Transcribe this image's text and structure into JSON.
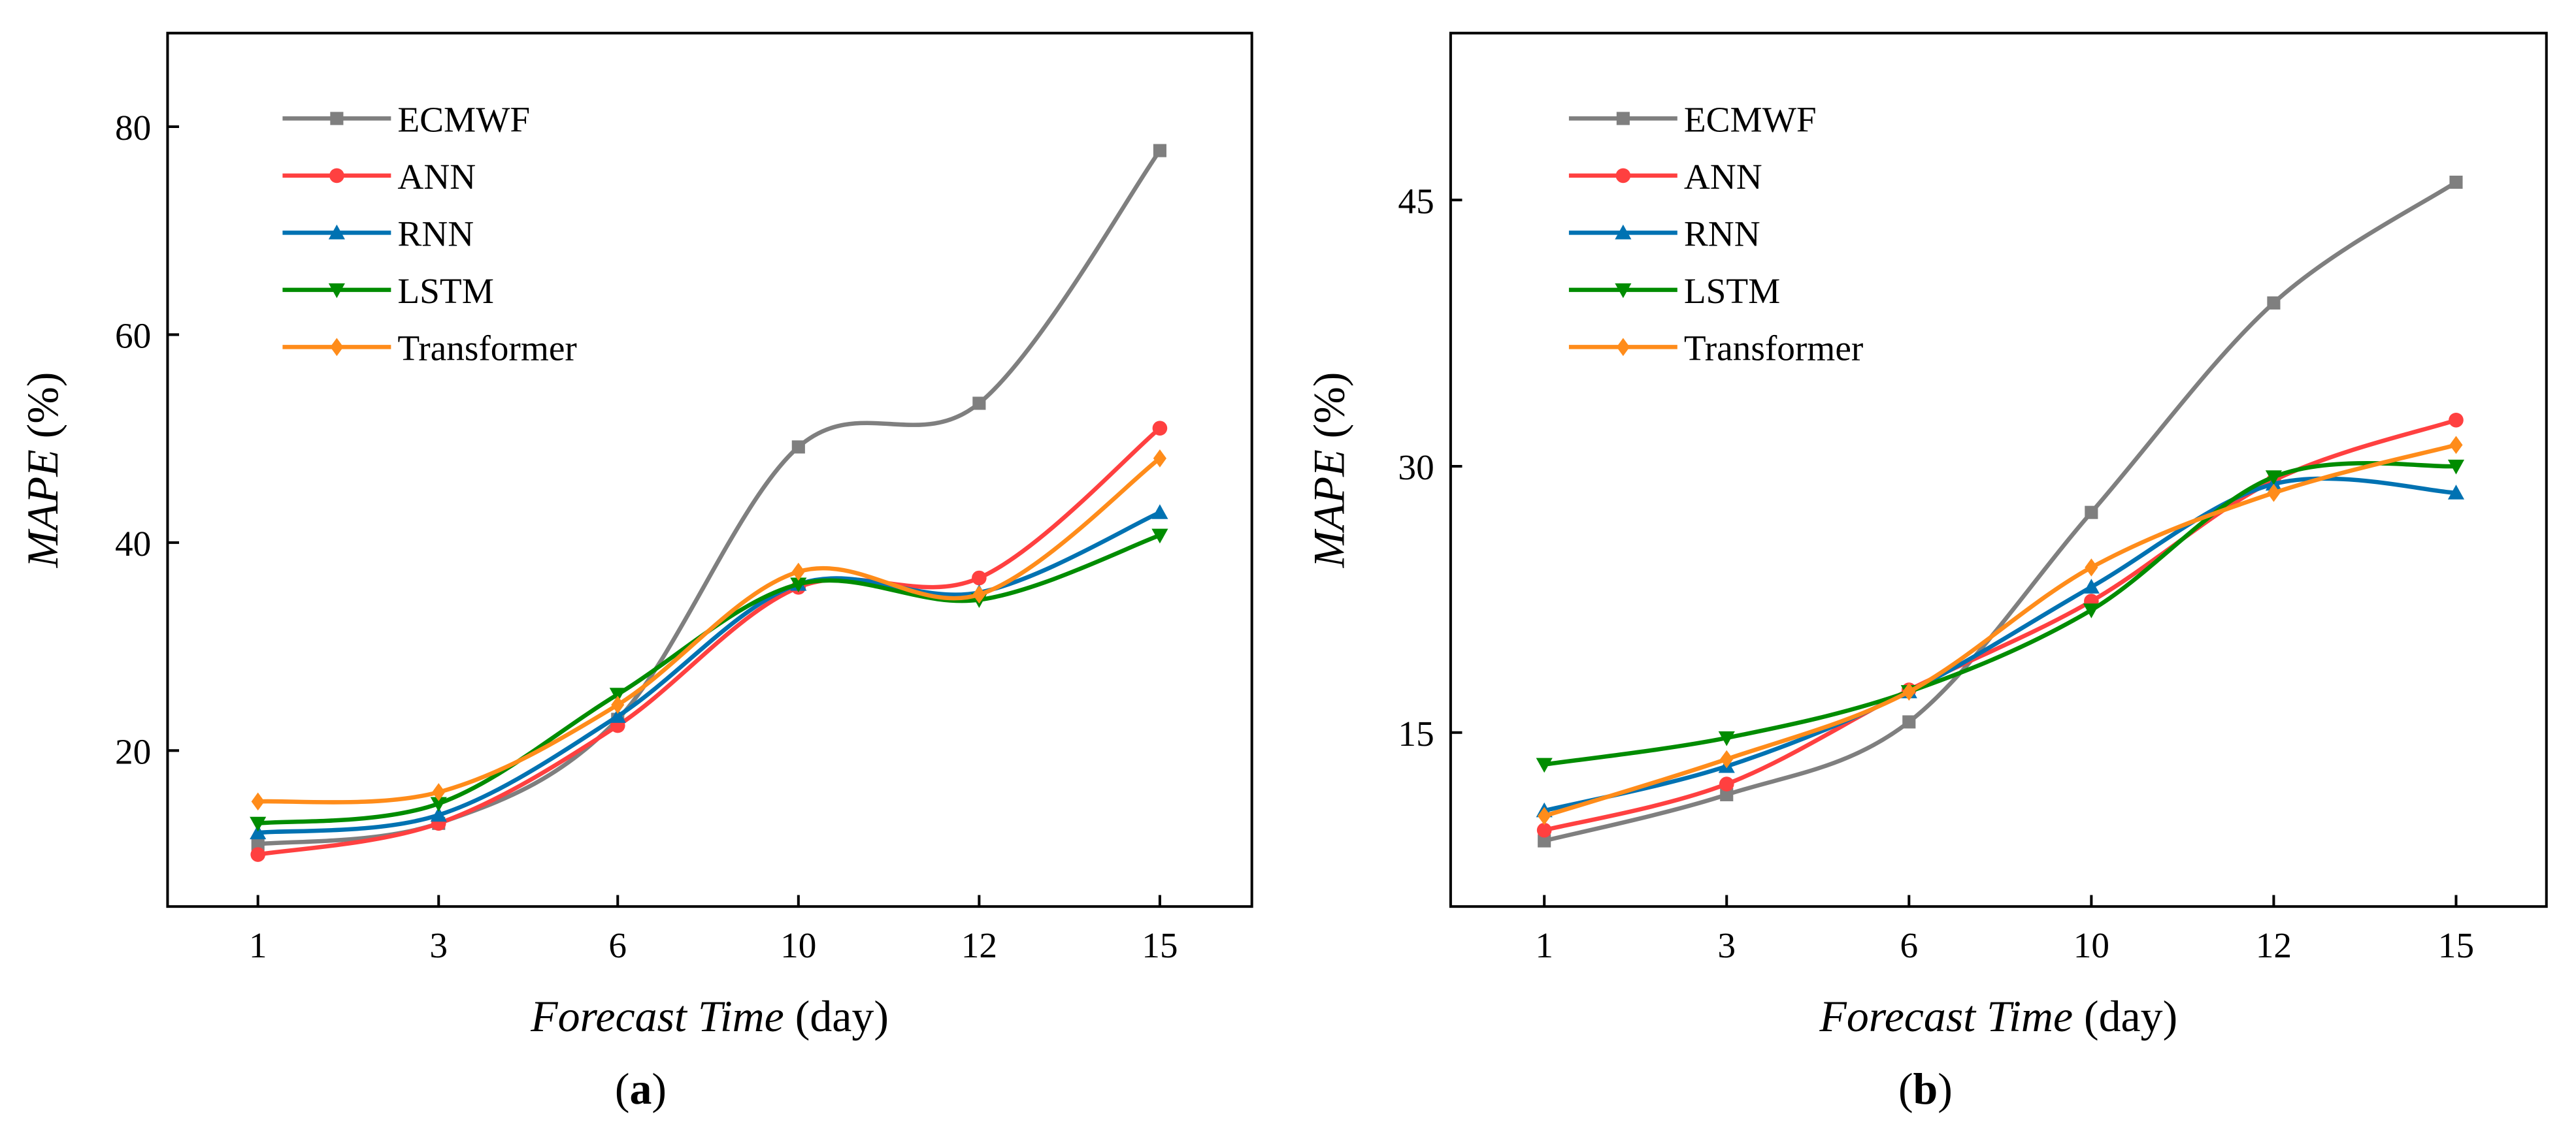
{
  "chart_data": [
    {
      "type": "line",
      "panel_label": "a",
      "xlabel_italic": "Forecast Time",
      "xlabel_unit": " (day)",
      "ylabel_italic": "MAPE",
      "ylabel_unit": " (%)",
      "categories": [
        "1",
        "3",
        "6",
        "10",
        "12",
        "15"
      ],
      "ylim": [
        5,
        89
      ],
      "yticks": [
        20,
        40,
        60,
        80
      ],
      "legend_position": "top-left",
      "series": [
        {
          "name": "ECMWF",
          "color": "#7f7f7f",
          "marker": "square",
          "values": [
            11.0,
            13.0,
            23.0,
            49.2,
            53.4,
            77.7
          ]
        },
        {
          "name": "ANN",
          "color": "#ff4040",
          "marker": "circle",
          "values": [
            10.0,
            13.0,
            22.4,
            35.7,
            36.6,
            51.0
          ]
        },
        {
          "name": "RNN",
          "color": "#0072b2",
          "marker": "triangle-up",
          "values": [
            12.1,
            13.8,
            23.3,
            36.0,
            35.2,
            42.9
          ]
        },
        {
          "name": "LSTM",
          "color": "#008c00",
          "marker": "triangle-down",
          "values": [
            13.0,
            14.9,
            25.4,
            36.0,
            34.5,
            40.7
          ]
        },
        {
          "name": "Transformer",
          "color": "#ff8c1a",
          "marker": "diamond",
          "values": [
            15.1,
            16.0,
            24.4,
            37.2,
            35.0,
            48.1
          ]
        }
      ]
    },
    {
      "type": "line",
      "panel_label": "b",
      "xlabel_italic": "Forecast Time",
      "xlabel_unit": " (day)",
      "ylabel_italic": "MAPE",
      "ylabel_unit": " (%)",
      "categories": [
        "1",
        "3",
        "6",
        "10",
        "12",
        "15"
      ],
      "ylim": [
        5.2,
        54.4
      ],
      "yticks": [
        15,
        30,
        45
      ],
      "legend_position": "top-left",
      "series": [
        {
          "name": "ECMWF",
          "color": "#7f7f7f",
          "marker": "square",
          "values": [
            8.9,
            11.5,
            15.6,
            27.4,
            39.2,
            46.0
          ]
        },
        {
          "name": "ANN",
          "color": "#ff4040",
          "marker": "circle",
          "values": [
            9.5,
            12.1,
            17.4,
            22.4,
            29.2,
            32.6
          ]
        },
        {
          "name": "RNN",
          "color": "#0072b2",
          "marker": "triangle-up",
          "values": [
            10.6,
            13.1,
            17.3,
            23.2,
            29.0,
            28.5
          ]
        },
        {
          "name": "LSTM",
          "color": "#008c00",
          "marker": "triangle-down",
          "values": [
            13.2,
            14.7,
            17.3,
            21.9,
            29.4,
            30.0
          ]
        },
        {
          "name": "Transformer",
          "color": "#ff8c1a",
          "marker": "diamond",
          "values": [
            10.3,
            13.5,
            17.3,
            24.3,
            28.5,
            31.2
          ]
        }
      ]
    }
  ]
}
